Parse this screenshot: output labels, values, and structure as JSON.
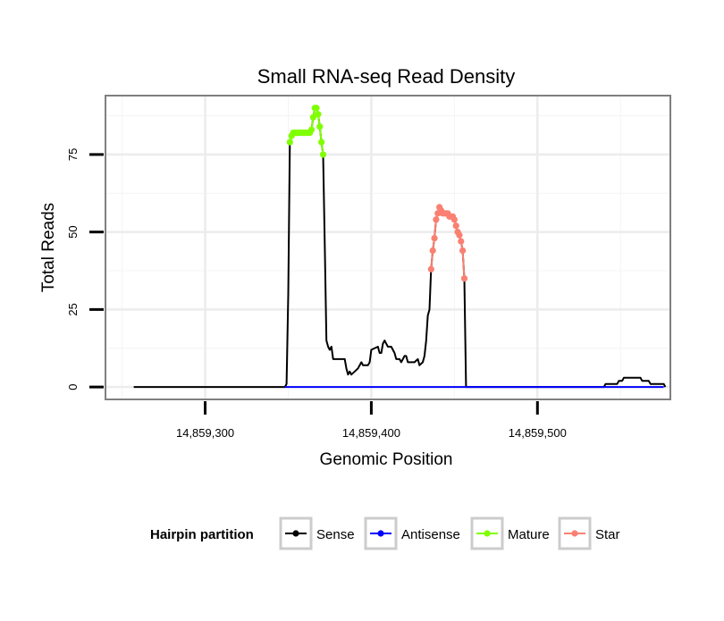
{
  "chart_data": {
    "type": "line",
    "title": "Small RNA-seq Read Density",
    "xlabel": "Genomic Position",
    "ylabel": "Total Reads",
    "xlim": [
      14859240,
      14859580
    ],
    "ylim": [
      -4,
      94
    ],
    "x_ticks": [
      14859300,
      14859400,
      14859500
    ],
    "x_tick_labels": [
      "14,859,300",
      "14,859,400",
      "14,859,500"
    ],
    "y_ticks": [
      0,
      25,
      50,
      75
    ],
    "y_tick_labels": [
      "0",
      "25",
      "50",
      "75"
    ],
    "grid": true,
    "legend": {
      "title": "Hairpin partition",
      "position": "bottom",
      "entries": [
        "Sense",
        "Antisense",
        "Mature",
        "Star"
      ]
    },
    "colors": {
      "Sense": "#000000",
      "Antisense": "#0000ff",
      "Mature": "#7fff00",
      "Star": "#fa8072"
    },
    "series": [
      {
        "name": "Sense",
        "style": "line",
        "points": [
          [
            14859257,
            0
          ],
          [
            14859348,
            0
          ],
          [
            14859349,
            1
          ],
          [
            14859350,
            30
          ],
          [
            14859351,
            79
          ],
          [
            14859352,
            81
          ],
          [
            14859354,
            82
          ],
          [
            14859362,
            82
          ],
          [
            14859364,
            83
          ],
          [
            14859365,
            87
          ],
          [
            14859366,
            90
          ],
          [
            14859367,
            90
          ],
          [
            14859368,
            88
          ],
          [
            14859369,
            84
          ],
          [
            14859370,
            79
          ],
          [
            14859371,
            75
          ],
          [
            14859372,
            45
          ],
          [
            14859373,
            15
          ],
          [
            14859374,
            13
          ],
          [
            14859375,
            12
          ],
          [
            14859376,
            13
          ],
          [
            14859377,
            9
          ],
          [
            14859384,
            9
          ],
          [
            14859385,
            6
          ],
          [
            14859386,
            4
          ],
          [
            14859387,
            5
          ],
          [
            14859388,
            4
          ],
          [
            14859390,
            5
          ],
          [
            14859392,
            6
          ],
          [
            14859394,
            8
          ],
          [
            14859395,
            7
          ],
          [
            14859398,
            7
          ],
          [
            14859399,
            8
          ],
          [
            14859400,
            12
          ],
          [
            14859404,
            13
          ],
          [
            14859405,
            11
          ],
          [
            14859406,
            11
          ],
          [
            14859407,
            14
          ],
          [
            14859408,
            15
          ],
          [
            14859409,
            14
          ],
          [
            14859410,
            13
          ],
          [
            14859412,
            13
          ],
          [
            14859414,
            11
          ],
          [
            14859415,
            9
          ],
          [
            14859417,
            9
          ],
          [
            14859418,
            8
          ],
          [
            14859420,
            10
          ],
          [
            14859421,
            10
          ],
          [
            14859422,
            8
          ],
          [
            14859424,
            8
          ],
          [
            14859426,
            8
          ],
          [
            14859428,
            9
          ],
          [
            14859429,
            7
          ],
          [
            14859431,
            8
          ],
          [
            14859432,
            10
          ],
          [
            14859433,
            15
          ],
          [
            14859434,
            23
          ],
          [
            14859435,
            25
          ],
          [
            14859436,
            38
          ],
          [
            14859437,
            44
          ],
          [
            14859438,
            48
          ],
          [
            14859439,
            54
          ],
          [
            14859440,
            56
          ],
          [
            14859441,
            58
          ],
          [
            14859442,
            57
          ],
          [
            14859443,
            56
          ],
          [
            14859445,
            56
          ],
          [
            14859447,
            55
          ],
          [
            14859449,
            55
          ],
          [
            14859450,
            54
          ],
          [
            14859451,
            52
          ],
          [
            14859452,
            50
          ],
          [
            14859453,
            49
          ],
          [
            14859454,
            47
          ],
          [
            14859455,
            44
          ],
          [
            14859456,
            35
          ],
          [
            14859457,
            0
          ],
          [
            14859540,
            0
          ],
          [
            14859541,
            1
          ],
          [
            14859548,
            1
          ],
          [
            14859549,
            2
          ],
          [
            14859551,
            2
          ],
          [
            14859552,
            3
          ],
          [
            14859562,
            3
          ],
          [
            14859563,
            2
          ],
          [
            14859567,
            2
          ],
          [
            14859568,
            1
          ],
          [
            14859576,
            1
          ],
          [
            14859577,
            0
          ]
        ]
      },
      {
        "name": "Antisense",
        "style": "line",
        "points": [
          [
            14859348,
            0
          ],
          [
            14859576,
            0
          ]
        ]
      },
      {
        "name": "Mature",
        "style": "line+points",
        "points": [
          [
            14859351,
            79
          ],
          [
            14859352,
            81
          ],
          [
            14859353,
            82
          ],
          [
            14859354,
            82
          ],
          [
            14859355,
            82
          ],
          [
            14859356,
            82
          ],
          [
            14859357,
            82
          ],
          [
            14859358,
            82
          ],
          [
            14859359,
            82
          ],
          [
            14859360,
            82
          ],
          [
            14859361,
            82
          ],
          [
            14859362,
            82
          ],
          [
            14859363,
            82
          ],
          [
            14859364,
            83
          ],
          [
            14859365,
            87
          ],
          [
            14859366,
            90
          ],
          [
            14859367,
            90
          ],
          [
            14859368,
            88
          ],
          [
            14859369,
            84
          ],
          [
            14859370,
            79
          ],
          [
            14859371,
            75
          ]
        ]
      },
      {
        "name": "Star",
        "style": "line+points",
        "points": [
          [
            14859436,
            38
          ],
          [
            14859437,
            44
          ],
          [
            14859438,
            48
          ],
          [
            14859439,
            54
          ],
          [
            14859440,
            56
          ],
          [
            14859441,
            58
          ],
          [
            14859442,
            57
          ],
          [
            14859443,
            56
          ],
          [
            14859444,
            56
          ],
          [
            14859445,
            56
          ],
          [
            14859446,
            56
          ],
          [
            14859447,
            55
          ],
          [
            14859448,
            55
          ],
          [
            14859449,
            55
          ],
          [
            14859450,
            54
          ],
          [
            14859451,
            52
          ],
          [
            14859452,
            50
          ],
          [
            14859453,
            49
          ],
          [
            14859454,
            47
          ],
          [
            14859455,
            44
          ],
          [
            14859456,
            35
          ]
        ]
      }
    ]
  }
}
